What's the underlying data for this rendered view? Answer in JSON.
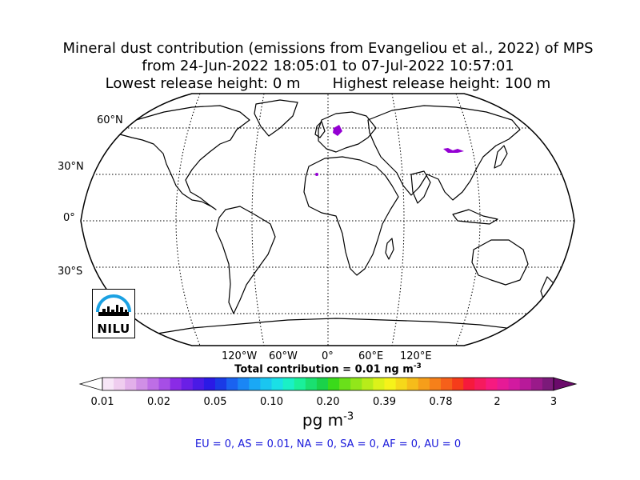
{
  "title": {
    "line1": "Mineral dust contribution (emissions from Evangeliou et al., 2022) of MPS",
    "line2": "from 24-Jun-2022 18:05:01 to 07-Jul-2022 10:57:01",
    "line3": "Lowest release height: 0 m       Highest release height: 100 m"
  },
  "map": {
    "projection": "Robinson",
    "lat_labels": [
      "60°N",
      "30°N",
      "0°",
      "30°S"
    ],
    "lon_labels": [
      "120°W",
      "60°W",
      "0°",
      "60°E",
      "120°E"
    ],
    "gridlines": "dotted",
    "hotspots_color": "#9400d3"
  },
  "logo": {
    "text": "NILU",
    "icon": "nilu-logo-icon",
    "arc_color": "#1ba1e2"
  },
  "total_contribution": {
    "prefix": "Total contribution = ",
    "value": "0.01",
    "unit": "ng m",
    "exponent": "-3"
  },
  "colorbar": {
    "ticks": [
      "0.01",
      "0.02",
      "0.05",
      "0.10",
      "0.20",
      "0.39",
      "0.78",
      "2",
      "3"
    ],
    "unit": "pg m",
    "unit_exponent": "-3",
    "extend": "both",
    "colors": [
      "#f7e6f7",
      "#efcdef",
      "#e2b0ea",
      "#d08fe6",
      "#be6ee6",
      "#a64ee6",
      "#8a2be6",
      "#6a1fe6",
      "#4a1ae6",
      "#2a1ae6",
      "#1a3ae6",
      "#1a62f0",
      "#1a86f5",
      "#1aa8f5",
      "#1ac6f0",
      "#1ae0e6",
      "#1af0c6",
      "#1af09a",
      "#1ae070",
      "#1ad24a",
      "#3ada1a",
      "#6ae01a",
      "#92e61a",
      "#b8ec1a",
      "#dcf21a",
      "#f6f21a",
      "#f6d81a",
      "#f6bc1a",
      "#f69e1a",
      "#f6801a",
      "#f6601a",
      "#f63c1a",
      "#f61a3c",
      "#f61a5e",
      "#f61a80",
      "#e61a96",
      "#d21aa0",
      "#b81a9a",
      "#9a1a8a",
      "#7c1a7a"
    ],
    "under_color": "#ffffff",
    "over_color": "#6a0a6a"
  },
  "regions": "EU = 0,  AS = 0.01,  NA = 0,  SA = 0,  AF = 0,  AU = 0"
}
